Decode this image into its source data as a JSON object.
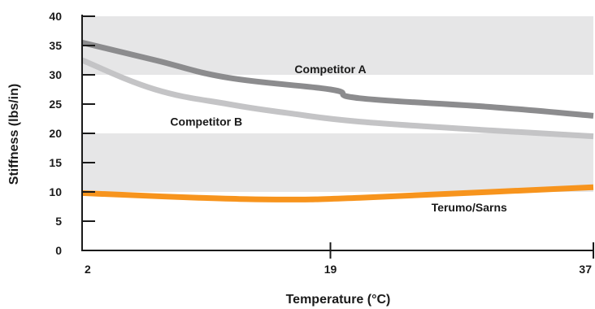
{
  "chart_data": {
    "type": "line",
    "title": "",
    "xlabel": "Temperature (°C)",
    "ylabel": "Stiffness (lbs/in)",
    "xlim": [
      2,
      37
    ],
    "ylim": [
      0,
      40
    ],
    "x_ticks": [
      2,
      19,
      37
    ],
    "y_ticks": [
      0,
      5,
      10,
      15,
      20,
      25,
      30,
      35,
      40
    ],
    "grid": false,
    "bands": [
      {
        "y_from": 30,
        "y_to": 40,
        "color": "#e6e6e7"
      },
      {
        "y_from": 10,
        "y_to": 20,
        "color": "#e6e6e7"
      }
    ],
    "series": [
      {
        "name": "Competitor A",
        "color": "#8c8c8e",
        "points": [
          [
            2,
            35.5
          ],
          [
            7,
            32.5
          ],
          [
            12,
            29.5
          ],
          [
            19,
            27.5
          ],
          [
            21,
            26
          ],
          [
            30,
            24.5
          ],
          [
            37,
            23
          ]
        ]
      },
      {
        "name": "Competitor B",
        "color": "#c4c4c6",
        "points": [
          [
            2,
            32.5
          ],
          [
            7,
            27.5
          ],
          [
            12,
            25
          ],
          [
            16,
            23.5
          ],
          [
            21,
            22
          ],
          [
            30,
            20.5
          ],
          [
            37,
            19.5
          ]
        ]
      },
      {
        "name": "Terumo/Sarns",
        "color": "#f7941d",
        "points": [
          [
            2,
            9.8
          ],
          [
            10,
            9
          ],
          [
            16,
            8.7
          ],
          [
            21,
            9
          ],
          [
            30,
            10
          ],
          [
            37,
            10.8
          ]
        ]
      }
    ],
    "series_labels": [
      {
        "text": "Competitor A",
        "x": 19,
        "y": 30.3
      },
      {
        "text": "Competitor B",
        "x": 10.5,
        "y": 21.3
      },
      {
        "text": "Terumo/Sarns",
        "x": 28.5,
        "y": 6.7
      }
    ]
  }
}
